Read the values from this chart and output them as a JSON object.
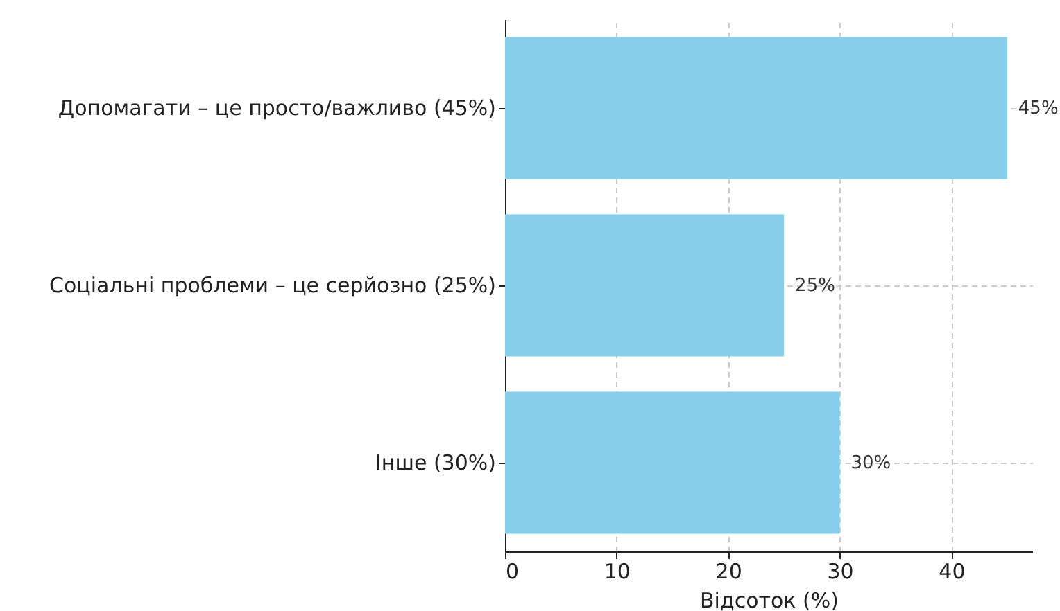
{
  "chart_data": {
    "type": "bar",
    "orientation": "horizontal",
    "xlabel": "Відсоток (%)",
    "categories": [
      "Допомагати – це просто/важливо (45%)",
      "Соціальні проблеми – це серйозно (25%)",
      "Інше (30%)"
    ],
    "values": [
      45,
      25,
      30
    ],
    "color": "#87ceeb",
    "value_labels": [
      "45%",
      "25%",
      "30%"
    ],
    "xlim": [
      0,
      47.25
    ],
    "xticks": [
      0,
      10,
      20,
      30,
      40
    ],
    "grid": true
  }
}
